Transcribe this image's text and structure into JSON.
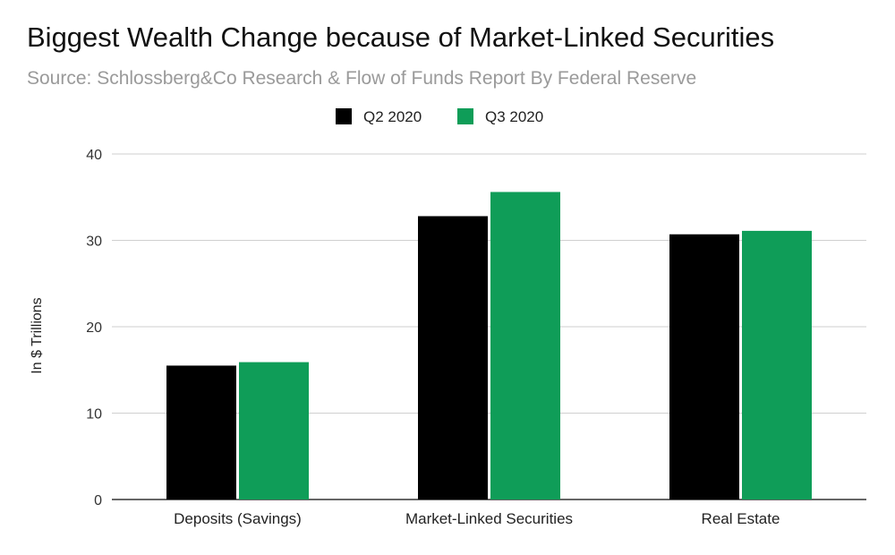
{
  "chart_data": {
    "type": "bar",
    "title": "Biggest Wealth Change because of Market-Linked Securities",
    "subtitle": "Source: Schlossberg&Co Research & Flow of Funds Report By Federal Reserve",
    "categories": [
      "Deposits (Savings)",
      "Market-Linked Securities",
      "Real Estate"
    ],
    "series": [
      {
        "name": "Q2 2020",
        "color": "#000000",
        "values": [
          15.5,
          32.8,
          30.7
        ]
      },
      {
        "name": "Q3 2020",
        "color": "#0f9d58",
        "values": [
          15.9,
          35.6,
          31.1
        ]
      }
    ],
    "xlabel": "",
    "ylabel": "In $ Trillions",
    "ylim": [
      0,
      40
    ],
    "yticks": [
      0,
      10,
      20,
      30,
      40
    ],
    "grid": true,
    "legend_position": "top"
  }
}
